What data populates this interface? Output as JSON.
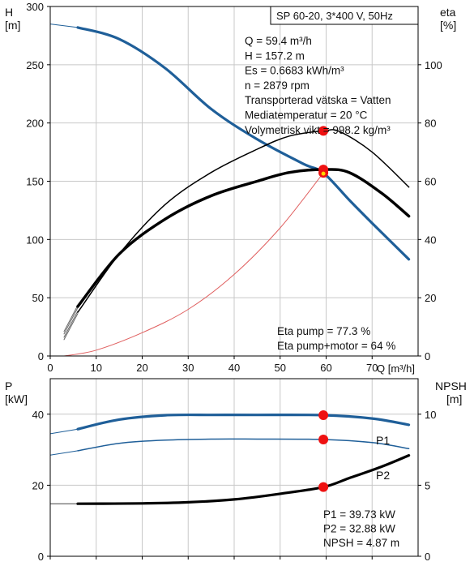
{
  "chart_data": [
    {
      "type": "line",
      "title": "SP 60-20, 3*400 V, 50Hz",
      "xlabel": "Q [m³/h]",
      "xlim": [
        0,
        80
      ],
      "x_ticks": [
        0,
        10,
        20,
        30,
        40,
        50,
        60,
        70
      ],
      "y_left": {
        "name": "H",
        "unit": "[m]",
        "lim": [
          0,
          300
        ],
        "ticks": [
          0,
          50,
          100,
          150,
          200,
          250,
          300
        ]
      },
      "y_right": {
        "name": "eta",
        "unit": "[%]",
        "lim": [
          0,
          120
        ],
        "ticks": [
          0,
          20,
          40,
          60,
          80,
          100
        ]
      },
      "grid": true,
      "info_lines": [
        "Q = 59.4 m³/h",
        "H = 157.2 m",
        "Es = 0.6683 kWh/m³",
        "n = 2879 rpm",
        "Transporterad vätska = Vatten",
        "Mediatemperatur = 20 °C",
        "Volymetrisk vikt = 998.2 kg/m³"
      ],
      "efficiency_lines": [
        "Eta pump = 77.3 %",
        "Eta pump+motor = 64 %"
      ],
      "series": [
        {
          "axis": "left",
          "color": "#1f5f99",
          "extension": [
            [
              0,
              285
            ],
            [
              6,
              282
            ]
          ],
          "points": [
            [
              6,
              282
            ],
            [
              15,
              272
            ],
            [
              25,
              247
            ],
            [
              35,
              212
            ],
            [
              45,
              186
            ],
            [
              55,
              165
            ],
            [
              59.4,
              157.2
            ],
            [
              65,
              134
            ],
            [
              70,
              114
            ],
            [
              78,
              83
            ]
          ]
        },
        {
          "axis": "right",
          "extension": [
            [
              3,
              6
            ],
            [
              6,
              15
            ]
          ],
          "points": [
            [
              6,
              15
            ],
            [
              15,
              35
            ],
            [
              25,
              52
            ],
            [
              35,
              63
            ],
            [
              45,
              71
            ],
            [
              52,
              75.5
            ],
            [
              59.4,
              77.3
            ],
            [
              63,
              77
            ],
            [
              70,
              70
            ],
            [
              78,
              58
            ]
          ]
        },
        {
          "axis": "right",
          "extension": [
            [
              3,
              8
            ],
            [
              6,
              17
            ]
          ],
          "points": [
            [
              6,
              17
            ],
            [
              15,
              35
            ],
            [
              25,
              47
            ],
            [
              35,
              55
            ],
            [
              45,
              60
            ],
            [
              52,
              63
            ],
            [
              59.4,
              64
            ],
            [
              65,
              63
            ],
            [
              72,
              56
            ],
            [
              78,
              48
            ]
          ]
        },
        {
          "axis": "left",
          "color": "#e06060",
          "points": [
            [
              3,
              0
            ],
            [
              10,
              5
            ],
            [
              20,
              20
            ],
            [
              30,
              40
            ],
            [
              40,
              70
            ],
            [
              50,
              110
            ],
            [
              59.4,
              157.2
            ]
          ]
        }
      ],
      "markers": [
        {
          "x": 59.4,
          "y": 157.2,
          "axis": "left",
          "label": ""
        },
        {
          "x": 59.4,
          "y": 160,
          "axis": "left"
        },
        {
          "x": 59.4,
          "y": 77.3,
          "axis": "right"
        }
      ]
    },
    {
      "type": "line",
      "xlim": [
        0,
        80
      ],
      "x_ticks": [
        0,
        10,
        20,
        30,
        40,
        50,
        60,
        70
      ],
      "y_left": {
        "name": "P",
        "unit": "[kW]",
        "lim": [
          0,
          50
        ],
        "ticks": [
          0,
          20,
          40
        ]
      },
      "y_right": {
        "name": "NPSH",
        "unit": "[m]",
        "lim": [
          0,
          12.5
        ],
        "ticks": [
          0,
          5,
          10
        ]
      },
      "grid": true,
      "values_lines": [
        "P1 = 39.73 kW",
        "P2 = 32.88 kW",
        "NPSH = 4.87 m"
      ],
      "series": [
        {
          "name": "P1",
          "axis": "left",
          "color": "#1f5f99",
          "extension": [
            [
              0,
              34.5
            ],
            [
              6,
              35.8
            ]
          ],
          "points": [
            [
              6,
              35.8
            ],
            [
              15,
              38.5
            ],
            [
              25,
              39.7
            ],
            [
              35,
              39.8
            ],
            [
              45,
              39.8
            ],
            [
              59.4,
              39.73
            ],
            [
              70,
              38.8
            ],
            [
              78,
              37
            ]
          ]
        },
        {
          "name": "P2",
          "axis": "left",
          "color": "#1f5f99",
          "extension": [
            [
              0,
              28.5
            ],
            [
              6,
              29.7
            ]
          ],
          "points": [
            [
              6,
              29.7
            ],
            [
              15,
              31.8
            ],
            [
              25,
              32.7
            ],
            [
              35,
              33
            ],
            [
              45,
              33
            ],
            [
              59.4,
              32.88
            ],
            [
              70,
              32
            ],
            [
              78,
              30.3
            ]
          ]
        },
        {
          "name": "",
          "axis": "right",
          "extension": [
            [
              0,
              3.7
            ],
            [
              6,
              3.7
            ]
          ],
          "points": [
            [
              6,
              3.7
            ],
            [
              20,
              3.72
            ],
            [
              30,
              3.8
            ],
            [
              40,
              4.0
            ],
            [
              50,
              4.4
            ],
            [
              59.4,
              4.87
            ],
            [
              65,
              5.5
            ],
            [
              72,
              6.3
            ],
            [
              78,
              7.1
            ]
          ]
        }
      ],
      "markers": [
        {
          "x": 59.4,
          "y": 39.73,
          "axis": "left"
        },
        {
          "x": 59.4,
          "y": 32.88,
          "axis": "left"
        },
        {
          "x": 59.4,
          "y": 4.87,
          "axis": "right"
        }
      ]
    }
  ]
}
